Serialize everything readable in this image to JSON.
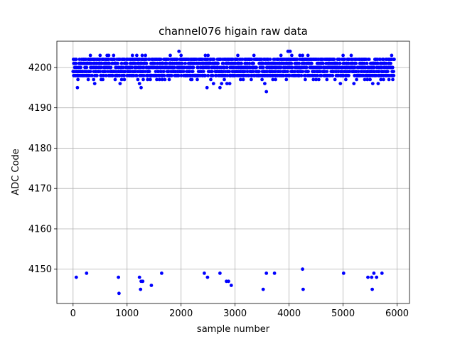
{
  "chart_data": {
    "type": "scatter",
    "title": "channel076 higain raw data",
    "xlabel": "sample number",
    "ylabel": "ADC Code",
    "xlim": [
      -300,
      6230
    ],
    "ylim": [
      4141.5,
      4206.5
    ],
    "xticks": [
      0,
      1000,
      2000,
      3000,
      4000,
      5000,
      6000
    ],
    "yticks": [
      4150,
      4160,
      4170,
      4180,
      4190,
      4200
    ],
    "grid": true,
    "legend": "none",
    "marker_color": "#0000ff",
    "series": [
      {
        "color": "#0000ff",
        "band": {
          "x_start": 0,
          "x_end": 5940,
          "y_min": 4198,
          "y_max": 4202,
          "y_center": 4200
        },
        "points": [
          [
            20,
            4201
          ],
          [
            60,
            4199
          ],
          [
            80,
            4195
          ],
          [
            90,
            4197
          ],
          [
            120,
            4202
          ],
          [
            150,
            4198
          ],
          [
            200,
            4202
          ],
          [
            250,
            4200
          ],
          [
            280,
            4197
          ],
          [
            300,
            4202
          ],
          [
            320,
            4203
          ],
          [
            350,
            4198
          ],
          [
            380,
            4197
          ],
          [
            400,
            4196
          ],
          [
            430,
            4201
          ],
          [
            480,
            4202
          ],
          [
            500,
            4203
          ],
          [
            520,
            4197
          ],
          [
            550,
            4197
          ],
          [
            600,
            4202
          ],
          [
            630,
            4203
          ],
          [
            660,
            4203
          ],
          [
            700,
            4202
          ],
          [
            720,
            4202
          ],
          [
            750,
            4203
          ],
          [
            780,
            4197
          ],
          [
            800,
            4198
          ],
          [
            850,
            4202
          ],
          [
            870,
            4196
          ],
          [
            900,
            4197
          ],
          [
            950,
            4197
          ],
          [
            980,
            4201
          ],
          [
            1050,
            4202
          ],
          [
            1100,
            4203
          ],
          [
            1150,
            4202
          ],
          [
            1180,
            4203
          ],
          [
            1200,
            4197
          ],
          [
            1230,
            4196
          ],
          [
            1260,
            4195
          ],
          [
            1280,
            4203
          ],
          [
            1300,
            4197
          ],
          [
            1340,
            4203
          ],
          [
            1380,
            4197
          ],
          [
            1400,
            4202
          ],
          [
            1430,
            4197
          ],
          [
            1470,
            4202
          ],
          [
            1500,
            4202
          ],
          [
            1550,
            4197
          ],
          [
            1600,
            4197
          ],
          [
            1650,
            4197
          ],
          [
            1700,
            4197
          ],
          [
            1730,
            4202
          ],
          [
            1780,
            4197
          ],
          [
            1800,
            4203
          ],
          [
            1850,
            4202
          ],
          [
            1900,
            4199
          ],
          [
            1930,
            4202
          ],
          [
            1960,
            4204
          ],
          [
            2000,
            4203
          ],
          [
            2050,
            4202
          ],
          [
            2100,
            4202
          ],
          [
            2150,
            4202
          ],
          [
            2180,
            4197
          ],
          [
            2200,
            4197
          ],
          [
            2250,
            4202
          ],
          [
            2300,
            4197
          ],
          [
            2350,
            4202
          ],
          [
            2400,
            4202
          ],
          [
            2450,
            4203
          ],
          [
            2480,
            4195
          ],
          [
            2500,
            4203
          ],
          [
            2550,
            4197
          ],
          [
            2600,
            4196
          ],
          [
            2650,
            4198
          ],
          [
            2700,
            4202
          ],
          [
            2720,
            4195
          ],
          [
            2750,
            4196
          ],
          [
            2800,
            4197
          ],
          [
            2850,
            4196
          ],
          [
            2900,
            4196
          ],
          [
            2950,
            4202
          ],
          [
            3000,
            4202
          ],
          [
            3050,
            4203
          ],
          [
            3100,
            4197
          ],
          [
            3150,
            4197
          ],
          [
            3200,
            4202
          ],
          [
            3250,
            4202
          ],
          [
            3300,
            4197
          ],
          [
            3350,
            4203
          ],
          [
            3400,
            4202
          ],
          [
            3450,
            4202
          ],
          [
            3500,
            4197
          ],
          [
            3550,
            4196
          ],
          [
            3580,
            4194
          ],
          [
            3600,
            4198
          ],
          [
            3650,
            4202
          ],
          [
            3700,
            4197
          ],
          [
            3750,
            4197
          ],
          [
            3800,
            4202
          ],
          [
            3850,
            4203
          ],
          [
            3900,
            4202
          ],
          [
            3950,
            4197
          ],
          [
            3980,
            4204
          ],
          [
            4020,
            4204
          ],
          [
            4050,
            4203
          ],
          [
            4100,
            4202
          ],
          [
            4150,
            4202
          ],
          [
            4200,
            4203
          ],
          [
            4250,
            4203
          ],
          [
            4300,
            4197
          ],
          [
            4350,
            4203
          ],
          [
            4400,
            4202
          ],
          [
            4450,
            4197
          ],
          [
            4500,
            4197
          ],
          [
            4550,
            4197
          ],
          [
            4600,
            4202
          ],
          [
            4650,
            4202
          ],
          [
            4700,
            4197
          ],
          [
            4750,
            4202
          ],
          [
            4800,
            4202
          ],
          [
            4850,
            4197
          ],
          [
            4900,
            4202
          ],
          [
            4950,
            4196
          ],
          [
            5000,
            4203
          ],
          [
            5050,
            4197
          ],
          [
            5100,
            4202
          ],
          [
            5150,
            4203
          ],
          [
            5200,
            4196
          ],
          [
            5250,
            4197
          ],
          [
            5300,
            4202
          ],
          [
            5350,
            4202
          ],
          [
            5400,
            4197
          ],
          [
            5450,
            4197
          ],
          [
            5500,
            4197
          ],
          [
            5550,
            4196
          ],
          [
            5600,
            4202
          ],
          [
            5650,
            4196
          ],
          [
            5700,
            4197
          ],
          [
            5750,
            4197
          ],
          [
            5800,
            4202
          ],
          [
            5850,
            4197
          ],
          [
            5880,
            4202
          ],
          [
            5900,
            4203
          ],
          [
            5920,
            4197
          ]
        ],
        "outliers": [
          [
            60,
            4148
          ],
          [
            250,
            4149
          ],
          [
            840,
            4148
          ],
          [
            850,
            4144
          ],
          [
            1230,
            4148
          ],
          [
            1250,
            4145
          ],
          [
            1260,
            4147
          ],
          [
            1290,
            4147
          ],
          [
            1450,
            4146
          ],
          [
            1640,
            4149
          ],
          [
            2430,
            4149
          ],
          [
            2490,
            4148
          ],
          [
            2720,
            4149
          ],
          [
            2840,
            4147
          ],
          [
            2880,
            4147
          ],
          [
            2930,
            4146
          ],
          [
            3520,
            4145
          ],
          [
            3580,
            4149
          ],
          [
            3730,
            4149
          ],
          [
            4250,
            4150
          ],
          [
            4260,
            4145
          ],
          [
            5010,
            4149
          ],
          [
            5460,
            4148
          ],
          [
            5530,
            4148
          ],
          [
            5540,
            4145
          ],
          [
            5570,
            4149
          ],
          [
            5620,
            4148
          ],
          [
            5720,
            4149
          ]
        ]
      }
    ]
  }
}
